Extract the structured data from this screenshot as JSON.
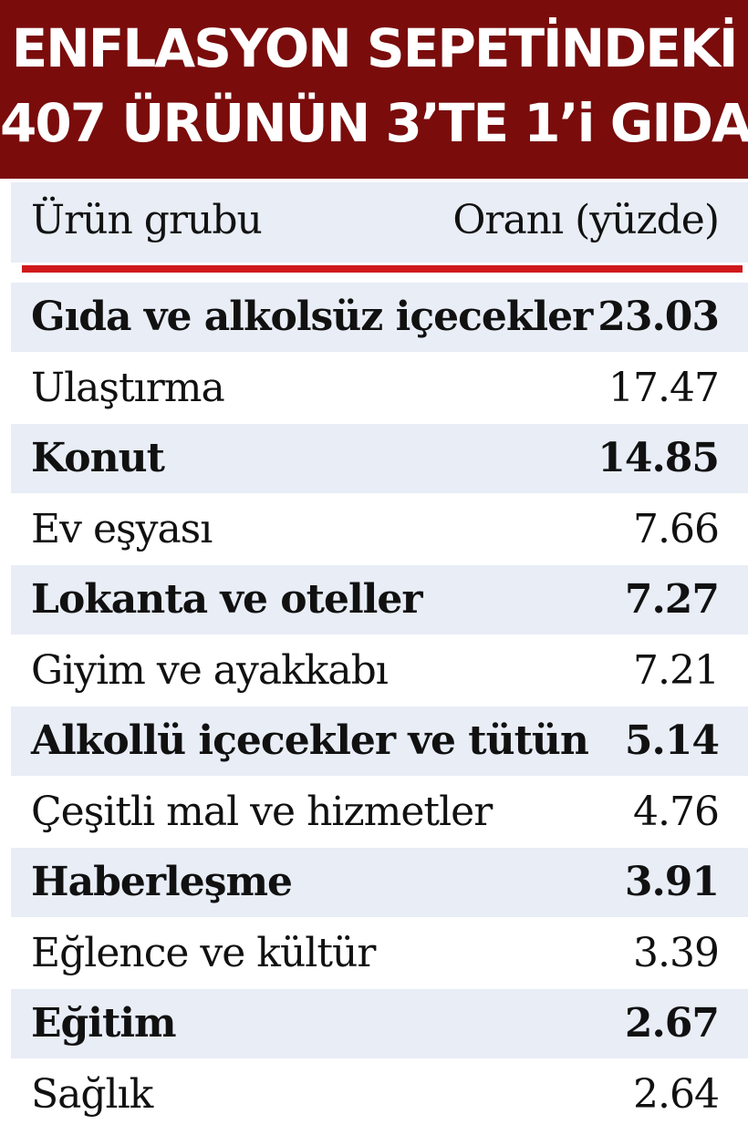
{
  "title": {
    "line1": "ENFLASYON SEPETİNDEKİ",
    "line2": "407 ÜRÜNÜN 3’TE 1’i GIDA"
  },
  "chart_data": {
    "type": "table",
    "columns": [
      "Ürün grubu",
      "Oranı (yüzde)"
    ],
    "categories": [
      "Gıda ve alkolsüz içecekler",
      "Ulaştırma",
      "Konut",
      "Ev eşyası",
      "Lokanta ve oteller",
      "Giyim ve ayakkabı",
      "Alkollü içecekler ve tütün",
      "Çeşitli mal ve hizmetler",
      "Haberleşme",
      "Eğlence ve kültür",
      "Eğitim",
      "Sağlık"
    ],
    "values": [
      "23.03",
      "17.47",
      "14.85",
      "7.66",
      "7.27",
      "7.21",
      "5.14",
      "4.76",
      "3.91",
      "3.39",
      "2.67",
      "2.64"
    ]
  },
  "colors": {
    "title_bg": "#7a0c0c",
    "row_shade": "#e8edf6",
    "rule": "#d0191b"
  }
}
